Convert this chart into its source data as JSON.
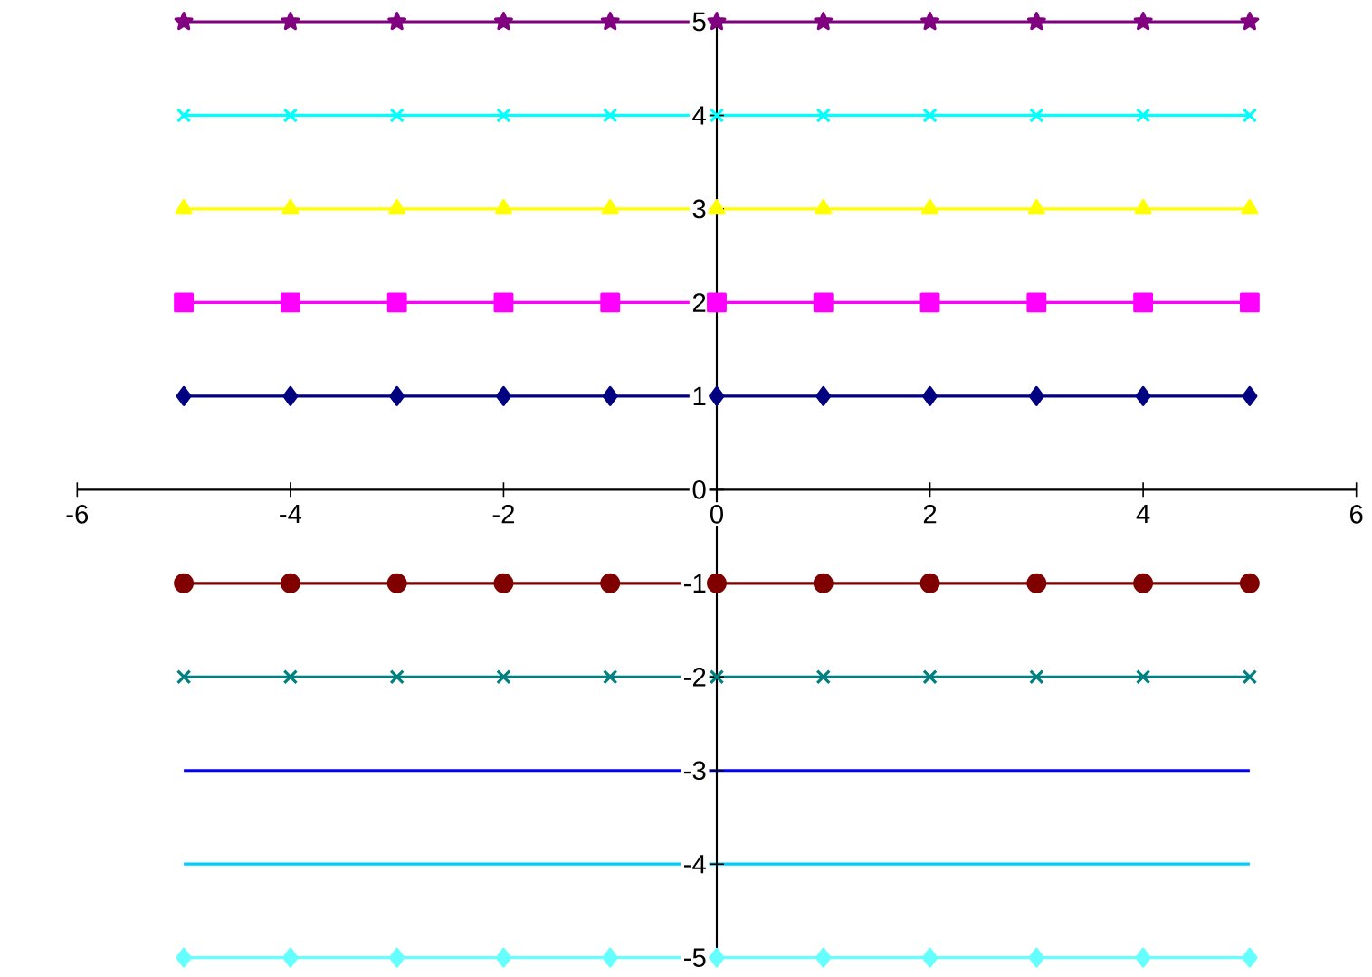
{
  "chart_data": {
    "type": "line",
    "x": [
      -5,
      -4,
      -3,
      -2,
      -1,
      0,
      1,
      2,
      3,
      4,
      5
    ],
    "series": [
      {
        "color": "#000080",
        "marker": "diamond",
        "values": [
          1,
          1,
          1,
          1,
          1,
          1,
          1,
          1,
          1,
          1,
          1
        ]
      },
      {
        "color": "#ff00ff",
        "marker": "square",
        "values": [
          2,
          2,
          2,
          2,
          2,
          2,
          2,
          2,
          2,
          2,
          2
        ]
      },
      {
        "color": "#ffff00",
        "marker": "triangle",
        "values": [
          3,
          3,
          3,
          3,
          3,
          3,
          3,
          3,
          3,
          3,
          3
        ]
      },
      {
        "color": "#00ffff",
        "marker": "cross",
        "values": [
          4,
          4,
          4,
          4,
          4,
          4,
          4,
          4,
          4,
          4,
          4
        ]
      },
      {
        "color": "#800080",
        "marker": "star",
        "values": [
          5,
          5,
          5,
          5,
          5,
          5,
          5,
          5,
          5,
          5,
          5
        ]
      },
      {
        "color": "#800000",
        "marker": "circle",
        "values": [
          -1,
          -1,
          -1,
          -1,
          -1,
          -1,
          -1,
          -1,
          -1,
          -1,
          -1
        ]
      },
      {
        "color": "#008080",
        "marker": "cross",
        "values": [
          -2,
          -2,
          -2,
          -2,
          -2,
          -2,
          -2,
          -2,
          -2,
          -2,
          -2
        ]
      },
      {
        "color": "#0000ff",
        "marker": "none",
        "values": [
          -3,
          -3,
          -3,
          -3,
          -3,
          -3,
          -3,
          -3,
          -3,
          -3,
          -3
        ]
      },
      {
        "color": "#00ccff",
        "marker": "none",
        "values": [
          -4,
          -4,
          -4,
          -4,
          -4,
          -4,
          -4,
          -4,
          -4,
          -4,
          -4
        ]
      },
      {
        "color": "#66ffff",
        "marker": "diamond",
        "values": [
          -5,
          -5,
          -5,
          -5,
          -5,
          -5,
          -5,
          -5,
          -5,
          -5,
          -5
        ]
      }
    ],
    "xlim": [
      -6,
      6
    ],
    "xticks": [
      -6,
      -4,
      -2,
      0,
      2,
      4,
      6
    ],
    "ylim": [
      -5,
      5
    ],
    "yticks": [
      -5,
      -4,
      -3,
      -2,
      -1,
      0,
      1,
      2,
      3,
      4,
      5
    ],
    "grid": false
  }
}
